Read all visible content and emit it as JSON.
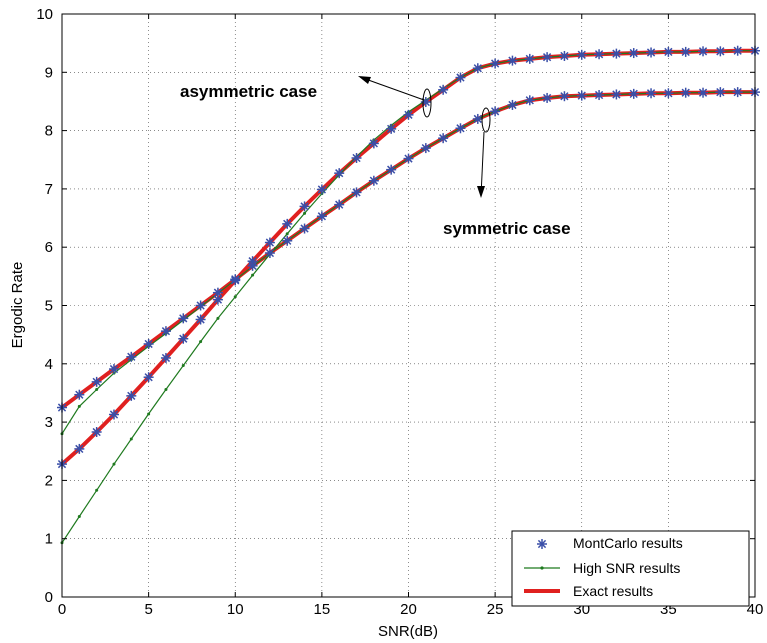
{
  "chart_data": {
    "type": "line",
    "title": "",
    "xlabel": "SNR(dB)",
    "ylabel": "Ergodic Rate",
    "xlim": [
      0,
      40
    ],
    "ylim": [
      0,
      10
    ],
    "xticks": [
      0,
      5,
      10,
      15,
      20,
      25,
      30,
      35,
      40
    ],
    "yticks": [
      0,
      1,
      2,
      3,
      4,
      5,
      6,
      7,
      8,
      9,
      10
    ],
    "grid": true,
    "legend_position": "bottom-right",
    "legend": [
      {
        "label": "MontCarlo results",
        "style": "asterisk",
        "color": "#3a4fa8"
      },
      {
        "label": "High SNR results",
        "style": "line-dot",
        "color": "#1f7a1f"
      },
      {
        "label": "Exact  results",
        "style": "thick-line",
        "color": "#e0201f"
      }
    ],
    "annotations": [
      {
        "text": "asymmetric case"
      },
      {
        "text": "symmetric case"
      }
    ],
    "series": [
      {
        "name": "Exact  results",
        "group": "asymmetric case",
        "x": [
          0,
          1,
          2,
          3,
          4,
          5,
          6,
          7,
          8,
          9,
          10,
          11,
          12,
          13,
          14,
          15,
          16,
          17,
          18,
          19,
          20,
          21,
          22,
          23,
          24,
          25,
          26,
          27,
          28,
          29,
          30,
          31,
          32,
          33,
          34,
          35,
          36,
          37,
          38,
          39,
          40
        ],
        "values": [
          2.28,
          2.54,
          2.83,
          3.13,
          3.45,
          3.77,
          4.1,
          4.43,
          4.76,
          5.1,
          5.43,
          5.76,
          6.08,
          6.4,
          6.7,
          6.99,
          7.27,
          7.53,
          7.78,
          8.03,
          8.27,
          8.49,
          8.7,
          8.91,
          9.07,
          9.15,
          9.2,
          9.23,
          9.26,
          9.28,
          9.3,
          9.31,
          9.32,
          9.33,
          9.34,
          9.35,
          9.35,
          9.36,
          9.36,
          9.37,
          9.37
        ]
      },
      {
        "name": "Exact  results",
        "group": "symmetric case",
        "x": [
          0,
          1,
          2,
          3,
          4,
          5,
          6,
          7,
          8,
          9,
          10,
          11,
          12,
          13,
          14,
          15,
          16,
          17,
          18,
          19,
          20,
          21,
          22,
          23,
          24,
          25,
          26,
          27,
          28,
          29,
          30,
          31,
          32,
          33,
          34,
          35,
          36,
          37,
          38,
          39,
          40
        ],
        "values": [
          3.25,
          3.47,
          3.69,
          3.91,
          4.12,
          4.34,
          4.56,
          4.78,
          5.0,
          5.22,
          5.45,
          5.68,
          5.9,
          6.11,
          6.32,
          6.53,
          6.73,
          6.94,
          7.14,
          7.33,
          7.52,
          7.7,
          7.87,
          8.04,
          8.2,
          8.33,
          8.44,
          8.52,
          8.56,
          8.59,
          8.6,
          8.61,
          8.62,
          8.63,
          8.64,
          8.64,
          8.65,
          8.65,
          8.66,
          8.66,
          8.66
        ]
      },
      {
        "name": "High SNR results",
        "group": "asymmetric case",
        "x": [
          0,
          1,
          2,
          3,
          4,
          5,
          6,
          7,
          8,
          9,
          10,
          11,
          12,
          13,
          14,
          15,
          16,
          17,
          18,
          19,
          20,
          21,
          22,
          23,
          24,
          25,
          26,
          27,
          28,
          29,
          30,
          31,
          32,
          33,
          34,
          35,
          36,
          37,
          38,
          39,
          40
        ],
        "values": [
          0.93,
          1.38,
          1.83,
          2.28,
          2.71,
          3.14,
          3.56,
          3.97,
          4.38,
          4.78,
          5.15,
          5.52,
          5.88,
          6.23,
          6.58,
          6.92,
          7.24,
          7.55,
          7.84,
          8.09,
          8.32,
          8.52,
          8.72,
          8.91,
          9.07,
          9.15,
          9.2,
          9.23,
          9.26,
          9.28,
          9.3,
          9.31,
          9.32,
          9.33,
          9.34,
          9.35,
          9.35,
          9.36,
          9.36,
          9.37,
          9.37
        ]
      },
      {
        "name": "High SNR results",
        "group": "symmetric case",
        "x": [
          0,
          1,
          2,
          3,
          4,
          5,
          6,
          7,
          8,
          9,
          10,
          11,
          12,
          13,
          14,
          15,
          16,
          17,
          18,
          19,
          20,
          21,
          22,
          23,
          24,
          25,
          26,
          27,
          28,
          29,
          30,
          31,
          32,
          33,
          34,
          35,
          36,
          37,
          38,
          39,
          40
        ],
        "values": [
          2.8,
          3.27,
          3.56,
          3.84,
          4.07,
          4.3,
          4.52,
          4.75,
          4.98,
          5.21,
          5.44,
          5.67,
          5.9,
          6.11,
          6.32,
          6.53,
          6.73,
          6.94,
          7.14,
          7.33,
          7.52,
          7.7,
          7.87,
          8.04,
          8.2,
          8.33,
          8.44,
          8.52,
          8.56,
          8.59,
          8.6,
          8.61,
          8.62,
          8.63,
          8.64,
          8.64,
          8.65,
          8.65,
          8.66,
          8.66,
          8.66
        ]
      },
      {
        "name": "MontCarlo results",
        "group": "asymmetric case",
        "x": [
          0,
          1,
          2,
          3,
          4,
          5,
          6,
          7,
          8,
          9,
          10,
          11,
          12,
          13,
          14,
          15,
          16,
          17,
          18,
          19,
          20,
          21,
          22,
          23,
          24,
          25,
          26,
          27,
          28,
          29,
          30,
          31,
          32,
          33,
          34,
          35,
          36,
          37,
          38,
          39,
          40
        ],
        "values": [
          2.28,
          2.54,
          2.83,
          3.13,
          3.45,
          3.77,
          4.1,
          4.43,
          4.76,
          5.1,
          5.43,
          5.76,
          6.08,
          6.4,
          6.7,
          6.99,
          7.27,
          7.53,
          7.78,
          8.03,
          8.27,
          8.49,
          8.7,
          8.91,
          9.07,
          9.15,
          9.2,
          9.23,
          9.26,
          9.28,
          9.3,
          9.31,
          9.32,
          9.33,
          9.34,
          9.35,
          9.35,
          9.36,
          9.36,
          9.37,
          9.37
        ]
      },
      {
        "name": "MontCarlo results",
        "group": "symmetric case",
        "x": [
          0,
          1,
          2,
          3,
          4,
          5,
          6,
          7,
          8,
          9,
          10,
          11,
          12,
          13,
          14,
          15,
          16,
          17,
          18,
          19,
          20,
          21,
          22,
          23,
          24,
          25,
          26,
          27,
          28,
          29,
          30,
          31,
          32,
          33,
          34,
          35,
          36,
          37,
          38,
          39,
          40
        ],
        "values": [
          3.25,
          3.47,
          3.69,
          3.91,
          4.12,
          4.34,
          4.56,
          4.78,
          5.0,
          5.22,
          5.45,
          5.68,
          5.9,
          6.11,
          6.32,
          6.53,
          6.73,
          6.94,
          7.14,
          7.33,
          7.52,
          7.7,
          7.87,
          8.04,
          8.2,
          8.33,
          8.44,
          8.52,
          8.56,
          8.59,
          8.6,
          8.61,
          8.62,
          8.63,
          8.64,
          8.64,
          8.65,
          8.65,
          8.66,
          8.66,
          8.66
        ]
      }
    ]
  }
}
